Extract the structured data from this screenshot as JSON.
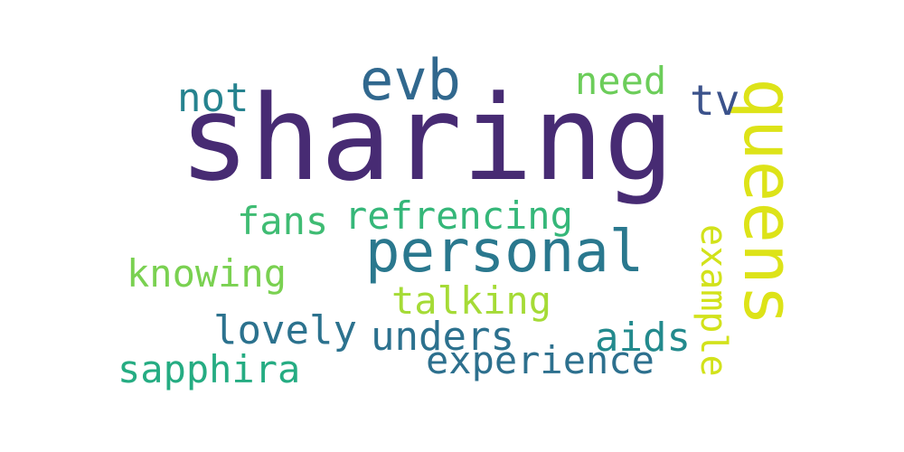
{
  "wordcloud": {
    "words": [
      {
        "key": "sharing",
        "text": "sharing",
        "color": "#472b73"
      },
      {
        "key": "queens",
        "text": "queens",
        "color": "#dde318"
      },
      {
        "key": "evb",
        "text": "evb",
        "color": "#31688e"
      },
      {
        "key": "personal",
        "text": "personal",
        "color": "#2a788e"
      },
      {
        "key": "not",
        "text": "not",
        "color": "#26838f"
      },
      {
        "key": "need",
        "text": "need",
        "color": "#6ccd5a"
      },
      {
        "key": "tv",
        "text": "tv",
        "color": "#3b528b"
      },
      {
        "key": "fans",
        "text": "fans",
        "color": "#3fbc73"
      },
      {
        "key": "refrencing",
        "text": "refrencing",
        "color": "#35b779"
      },
      {
        "key": "knowing",
        "text": "knowing",
        "color": "#7ad151"
      },
      {
        "key": "talking",
        "text": "talking",
        "color": "#a5db36"
      },
      {
        "key": "example",
        "text": "example",
        "color": "#d2e21b"
      },
      {
        "key": "lovely",
        "text": "lovely",
        "color": "#2c728e"
      },
      {
        "key": "unders",
        "text": "unders",
        "color": "#2c718e"
      },
      {
        "key": "aids",
        "text": "aids",
        "color": "#238a8d"
      },
      {
        "key": "sapphira",
        "text": "sapphira",
        "color": "#25ac82"
      },
      {
        "key": "experience",
        "text": "experience",
        "color": "#2d708e"
      }
    ]
  }
}
